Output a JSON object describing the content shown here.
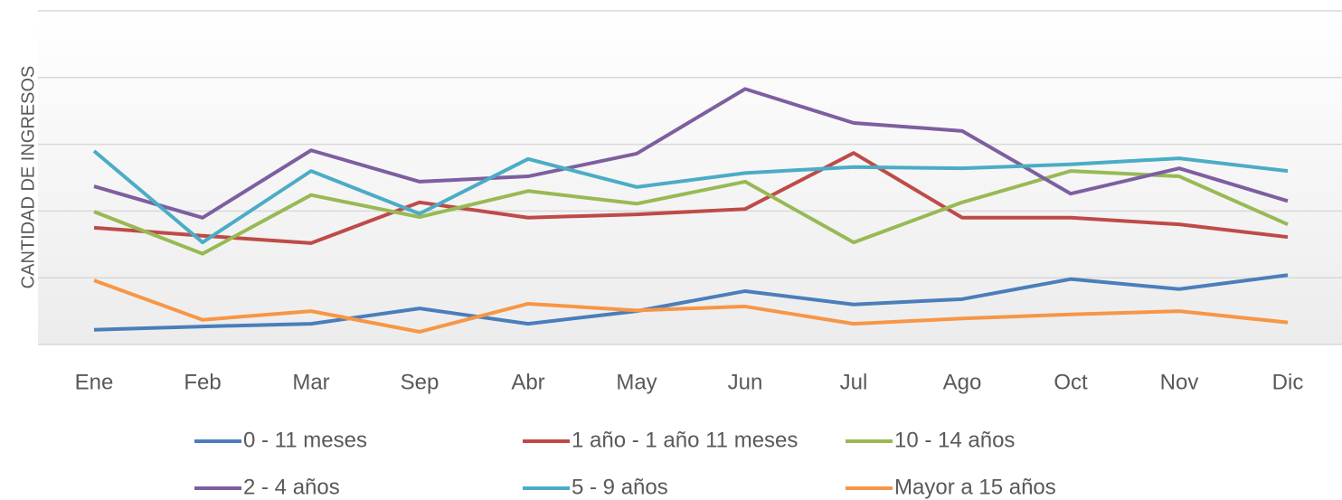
{
  "chart_data": {
    "type": "line",
    "y_label": "CANTIDAD DE INGRESOS",
    "categories": [
      "Ene",
      "Feb",
      "Mar",
      "Sep",
      "Abr",
      "May",
      "Jun",
      "Jul",
      "Ago",
      "Oct",
      "Nov",
      "Dic"
    ],
    "series": [
      {
        "name": "0 - 11 meses",
        "color": "#4a7ebb",
        "values": [
          0.22,
          0.27,
          0.31,
          0.54,
          0.31,
          0.5,
          0.8,
          0.6,
          0.68,
          0.98,
          0.83,
          1.04
        ]
      },
      {
        "name": "1 año - 1 año 11 meses",
        "color": "#be4b48",
        "values": [
          1.75,
          1.63,
          1.52,
          2.13,
          1.9,
          1.95,
          2.03,
          2.87,
          1.9,
          1.9,
          1.8,
          1.61
        ]
      },
      {
        "name": "10 - 14 años",
        "color": "#98b954",
        "values": [
          1.99,
          1.36,
          2.24,
          1.91,
          2.3,
          2.11,
          2.44,
          1.53,
          2.13,
          2.6,
          2.52,
          1.8
        ]
      },
      {
        "name": "2 - 4 años",
        "color": "#7d5fa0",
        "values": [
          2.37,
          1.9,
          2.91,
          2.44,
          2.52,
          2.86,
          3.83,
          3.32,
          3.2,
          2.26,
          2.64,
          2.15
        ]
      },
      {
        "name": "5 - 9 años",
        "color": "#4bacc6",
        "values": [
          2.9,
          1.53,
          2.6,
          1.96,
          2.78,
          2.36,
          2.57,
          2.66,
          2.64,
          2.7,
          2.79,
          2.6
        ]
      },
      {
        "name": "Mayor a 15 años",
        "color": "#f79646",
        "values": [
          0.96,
          0.37,
          0.5,
          0.19,
          0.61,
          0.51,
          0.57,
          0.31,
          0.39,
          0.45,
          0.5,
          0.33
        ]
      }
    ],
    "ylim": [
      0,
      5
    ],
    "yticks": [
      0,
      1,
      2,
      3,
      4,
      5
    ],
    "grid": true
  }
}
